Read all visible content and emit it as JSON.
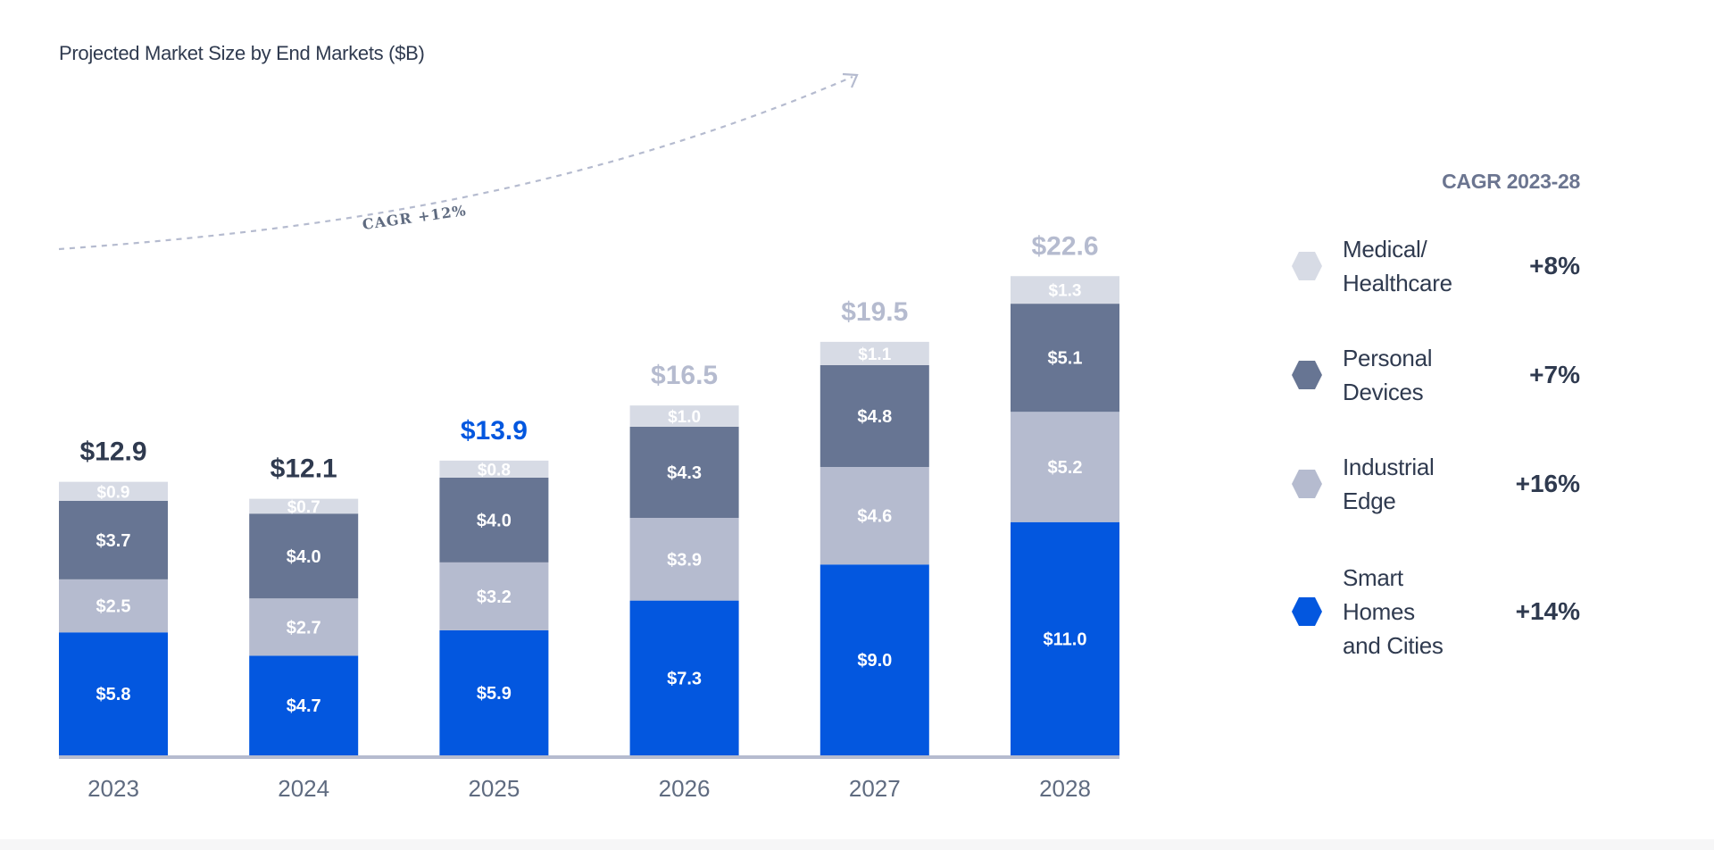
{
  "chart_data": {
    "type": "bar",
    "stacked": true,
    "title": "Projected Market Size by End Markets ($B)",
    "categories": [
      "2023",
      "2024",
      "2025",
      "2026",
      "2027",
      "2028"
    ],
    "totals": [
      "$12.9",
      "$12.1",
      "$13.9",
      "$16.5",
      "$19.5",
      "$22.6"
    ],
    "total_values": [
      12.9,
      12.1,
      13.9,
      16.5,
      19.5,
      22.6
    ],
    "series": [
      {
        "name": "Smart Homes and Cities",
        "values": [
          5.8,
          4.7,
          5.9,
          7.3,
          9.0,
          11.0
        ],
        "labels": [
          "$5.8",
          "$4.7",
          "$5.9",
          "$7.3",
          "$9.0",
          "$11.0"
        ],
        "color": "#0357df"
      },
      {
        "name": "Industrial Edge",
        "values": [
          2.5,
          2.7,
          3.2,
          3.9,
          4.6,
          5.2
        ],
        "labels": [
          "$2.5",
          "$2.7",
          "$3.2",
          "$3.9",
          "$4.6",
          "$5.2"
        ],
        "color": "#b5bbcf"
      },
      {
        "name": "Personal Devices",
        "values": [
          3.7,
          4.0,
          4.0,
          4.3,
          4.8,
          5.1
        ],
        "labels": [
          "$3.7",
          "$4.0",
          "$4.0",
          "$4.3",
          "$4.8",
          "$5.1"
        ],
        "color": "#677593"
      },
      {
        "name": "Medical/Healthcare",
        "values": [
          0.9,
          0.7,
          0.8,
          1.0,
          1.1,
          1.3
        ],
        "labels": [
          "$0.9",
          "$0.7",
          "$0.8",
          "$1.0",
          "$1.1",
          "$1.3"
        ],
        "color": "#d7dbe5"
      }
    ],
    "total_colors": [
      "#2f3a4f",
      "#2f3a4f",
      "#0357df",
      "#b5bbcf",
      "#b5bbcf",
      "#b5bbcf"
    ],
    "annotation": "CAGR +12%",
    "ylim": [
      0,
      23
    ]
  },
  "legend": {
    "header": "CAGR 2023-28",
    "items": [
      {
        "name": "Medical/\nHealthcare",
        "cagr": "+8%",
        "color": "#d7dbe5"
      },
      {
        "name": "Personal\nDevices",
        "cagr": "+7%",
        "color": "#677593"
      },
      {
        "name": "Industrial\nEdge",
        "cagr": "+16%",
        "color": "#b5bbcf"
      },
      {
        "name": "Smart\nHomes\nand Cities",
        "cagr": "+14%",
        "color": "#0357df"
      }
    ]
  },
  "colors": {
    "axis": "#b5bbcf",
    "arc": "#b5bbcf"
  }
}
